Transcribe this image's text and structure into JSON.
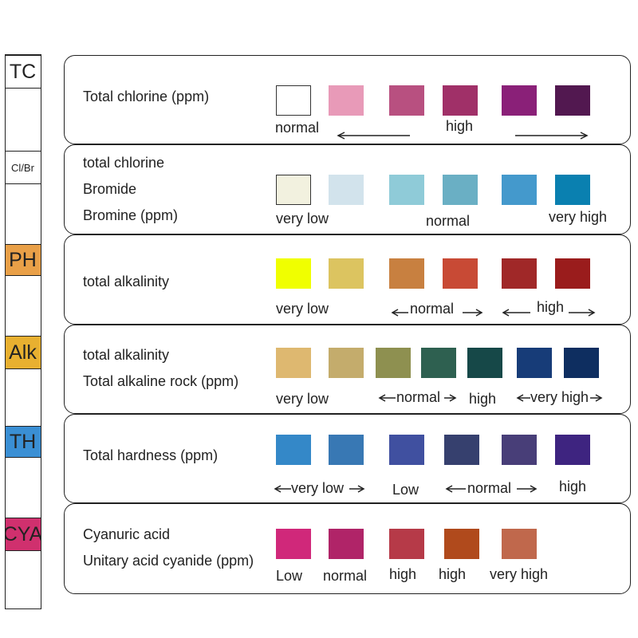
{
  "strip": {
    "pads": [
      {
        "label": "TC",
        "color": "#ffffff"
      },
      {
        "label": "Cl/Br",
        "color": "#ffffff"
      },
      {
        "label": "PH",
        "color": "#e9a048"
      },
      {
        "label": "Alk",
        "color": "#e8b030"
      },
      {
        "label": "TH",
        "color": "#3a8fd4"
      },
      {
        "label": "CYA",
        "color": "#d0306e"
      }
    ]
  },
  "panels": [
    {
      "labels": [
        "Total chlorine (ppm)"
      ],
      "swatches": [
        "#ffffff",
        "#e89ab8",
        "#b85080",
        "#a03068",
        "#8a2078",
        "#521850"
      ],
      "texts": [
        "normal",
        "high"
      ]
    },
    {
      "labels": [
        "total chlorine",
        "Bromide",
        "Bromine (ppm)"
      ],
      "swatches": [
        "#f2f1df",
        "#d2e3ec",
        "#8fcbd8",
        "#6aafc4",
        "#4499cc",
        "#0a80b0"
      ],
      "texts": [
        "very low",
        "normal",
        "very high"
      ]
    },
    {
      "labels": [
        "total alkalinity"
      ],
      "swatches": [
        "#f0ff00",
        "#dcc460",
        "#c88040",
        "#c84a35",
        "#a02828",
        "#9a1c1c"
      ],
      "texts": [
        "very low",
        "normal",
        "high"
      ]
    },
    {
      "labels": [
        "total alkalinity",
        "Total alkaline rock (ppm)"
      ],
      "swatches": [
        "#deb870",
        "#c4ac6c",
        "#8e9050",
        "#2e6050",
        "#164848",
        "#173c78",
        "#0e2e60"
      ],
      "texts": [
        "very low",
        "normal",
        "high",
        "very high"
      ]
    },
    {
      "labels": [
        "Total hardness (ppm)"
      ],
      "swatches": [
        "#3488c8",
        "#3878b4",
        "#4050a0",
        "#36406e",
        "#483e78",
        "#3e2480"
      ],
      "texts": [
        "very low",
        "Low",
        "normal",
        "high"
      ]
    },
    {
      "labels": [
        "Cyanuric acid",
        "Unitary acid cyanide (ppm)"
      ],
      "swatches": [
        "#d0287a",
        "#b02468",
        "#b63a48",
        "#b04a1c",
        "#c0684c"
      ],
      "texts": [
        "Low",
        "normal",
        "high",
        "high",
        "very high"
      ]
    }
  ]
}
